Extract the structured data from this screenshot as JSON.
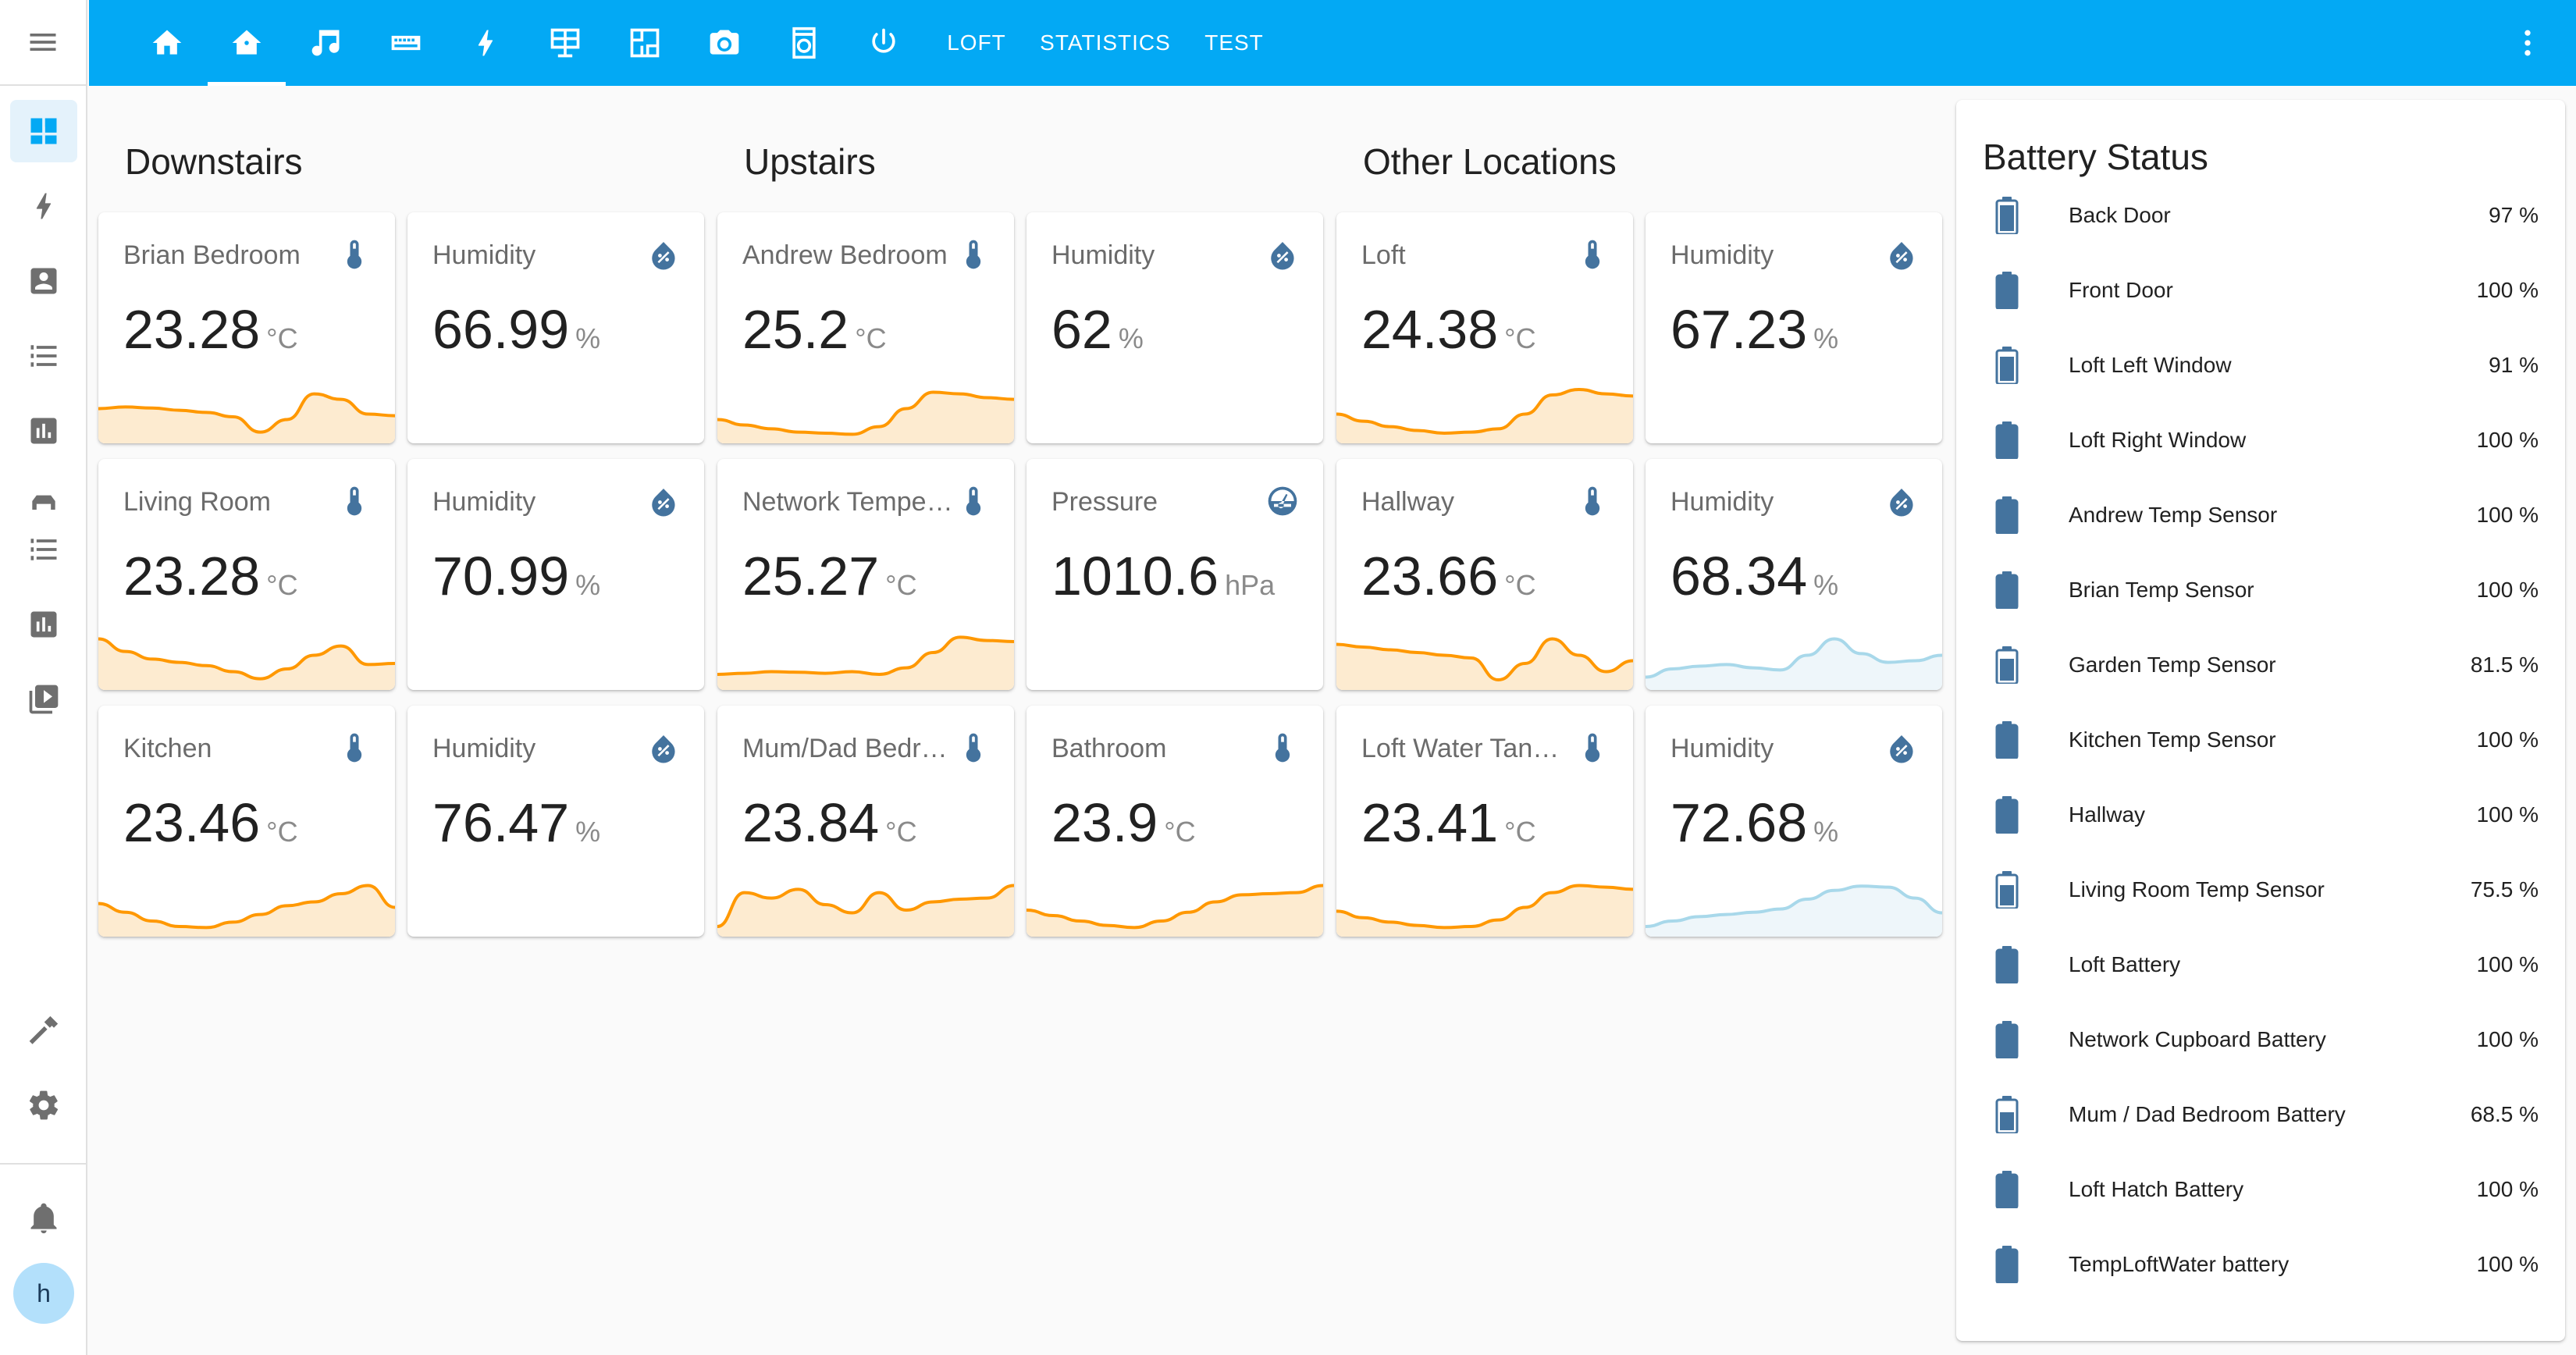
{
  "nav": {
    "menu_icon": "menu-icon",
    "sidebar_icons": [
      "dashboard-icon",
      "lightning-icon",
      "account-box-icon",
      "list-icon",
      "chart-icon",
      "car-icon",
      "list-icon",
      "chart-icon",
      "media-icon"
    ],
    "bottom_icons": [
      "hammer-icon",
      "gear-icon",
      "bell-icon"
    ],
    "avatar_letter": "h"
  },
  "header": {
    "tabs": [
      {
        "icon": "home-icon"
      },
      {
        "icon": "home-icon",
        "active": true
      },
      {
        "icon": "music-icon"
      },
      {
        "icon": "keyboard-icon"
      },
      {
        "icon": "lightning-icon"
      },
      {
        "icon": "solar-panel-icon"
      },
      {
        "icon": "floor-plan-icon"
      },
      {
        "icon": "camera-icon"
      },
      {
        "icon": "washing-machine-icon"
      },
      {
        "icon": "power-icon"
      }
    ],
    "text_tabs": [
      "LOFT",
      "STATISTICS",
      "TEST"
    ],
    "more_icon": "dots-vertical-icon",
    "accent_color": "#03a9f4"
  },
  "sections": [
    {
      "title": "Downstairs",
      "cards": [
        {
          "name": "Brian Bedroom",
          "value": "23.28",
          "unit": "°C",
          "icon": "thermometer-icon"
        },
        {
          "name": "Humidity",
          "value": "66.99",
          "unit": "%",
          "icon": "water-percent-icon"
        },
        {
          "name": "Living Room",
          "value": "23.28",
          "unit": "°C",
          "icon": "thermometer-icon"
        },
        {
          "name": "Humidity",
          "value": "70.99",
          "unit": "%",
          "icon": "water-percent-icon"
        },
        {
          "name": "Kitchen",
          "value": "23.46",
          "unit": "°C",
          "icon": "thermometer-icon"
        },
        {
          "name": "Humidity",
          "value": "76.47",
          "unit": "%",
          "icon": "water-percent-icon"
        }
      ]
    },
    {
      "title": "Upstairs",
      "cards": [
        {
          "name": "Andrew Bedroom",
          "value": "25.2",
          "unit": "°C",
          "icon": "thermometer-icon"
        },
        {
          "name": "Humidity",
          "value": "62",
          "unit": "%",
          "icon": "water-percent-icon"
        },
        {
          "name": "Network Tempe…",
          "value": "25.27",
          "unit": "°C",
          "icon": "thermometer-icon"
        },
        {
          "name": "Pressure",
          "value": "1010.6",
          "unit": "hPa",
          "icon": "gauge-icon"
        },
        {
          "name": "Mum/Dad Bedr…",
          "value": "23.84",
          "unit": "°C",
          "icon": "thermometer-icon"
        },
        {
          "name": "Bathroom",
          "value": "23.9",
          "unit": "°C",
          "icon": "thermometer-icon"
        }
      ]
    },
    {
      "title": "Other Locations",
      "cards": [
        {
          "name": "Loft",
          "value": "24.38",
          "unit": "°C",
          "icon": "thermometer-icon"
        },
        {
          "name": "Humidity",
          "value": "67.23",
          "unit": "%",
          "icon": "water-percent-icon"
        },
        {
          "name": "Hallway",
          "value": "23.66",
          "unit": "°C",
          "icon": "thermometer-icon"
        },
        {
          "name": "Humidity",
          "value": "68.34",
          "unit": "%",
          "icon": "water-percent-icon"
        },
        {
          "name": "Loft Water Tank …",
          "value": "23.41",
          "unit": "°C",
          "icon": "thermometer-icon"
        },
        {
          "name": "Humidity",
          "value": "72.68",
          "unit": "%",
          "icon": "water-percent-icon"
        }
      ]
    }
  ],
  "battery": {
    "title": "Battery Status",
    "items": [
      {
        "name": "Back Door",
        "value": "97 %",
        "level": 0.97
      },
      {
        "name": "Front Door",
        "value": "100 %",
        "level": 1.0
      },
      {
        "name": "Loft Left Window",
        "value": "91 %",
        "level": 0.91
      },
      {
        "name": "Loft Right Window",
        "value": "100 %",
        "level": 1.0
      },
      {
        "name": "Andrew Temp Sensor",
        "value": "100 %",
        "level": 1.0
      },
      {
        "name": "Brian Temp Sensor",
        "value": "100 %",
        "level": 1.0
      },
      {
        "name": "Garden Temp Sensor",
        "value": "81.5 %",
        "level": 0.815
      },
      {
        "name": "Kitchen Temp Sensor",
        "value": "100 %",
        "level": 1.0
      },
      {
        "name": "Hallway",
        "value": "100 %",
        "level": 1.0
      },
      {
        "name": "Living Room Temp Sensor",
        "value": "75.5 %",
        "level": 0.755
      },
      {
        "name": "Loft Battery",
        "value": "100 %",
        "level": 1.0
      },
      {
        "name": "Network Cupboard Battery",
        "value": "100 %",
        "level": 1.0
      },
      {
        "name": "Mum / Dad Bedroom Battery",
        "value": "68.5 %",
        "level": 0.685
      },
      {
        "name": "Loft Hatch Battery",
        "value": "100 %",
        "level": 1.0
      },
      {
        "name": "TempLoftWater battery",
        "value": "100 %",
        "level": 1.0
      }
    ]
  },
  "colors": {
    "icon_blue": "#44739e",
    "temp_line": "#ff9800",
    "temp_fill": "#fdebd0",
    "humidity_line": "#a8d8ea",
    "humidity_fill": "#eef6fa",
    "sidebar_icon": "#6f6f6f"
  }
}
